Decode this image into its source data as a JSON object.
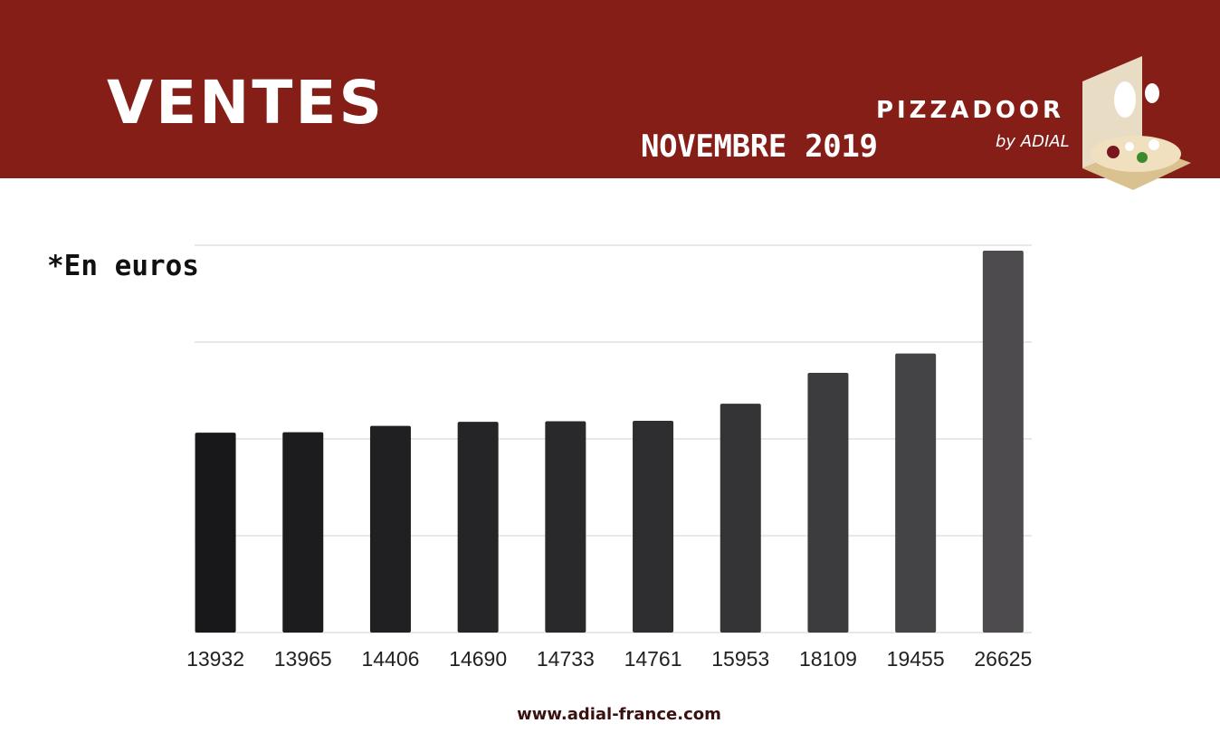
{
  "header": {
    "title": "VENTES",
    "subtitle": "NOVEMBRE 2019"
  },
  "logo": {
    "name": "PIZZADOOR",
    "tagline": "by ADIAL"
  },
  "footer": {
    "url": "www.adial-france.com"
  },
  "chart_data": {
    "type": "bar",
    "annotation": "*En euros",
    "values": [
      13932,
      13965,
      14406,
      14690,
      14733,
      14761,
      15953,
      18109,
      19455,
      26625
    ],
    "colors": [
      "#18171a",
      "#1c1b1e",
      "#201f22",
      "#252427",
      "#29282b",
      "#2e2d30",
      "#343336",
      "#3c3b3e",
      "#444346",
      "#4d4b4e"
    ],
    "ylim": [
      0,
      27000
    ],
    "yticks": [
      0,
      6750,
      13500,
      20250,
      27000
    ],
    "grid": true
  }
}
